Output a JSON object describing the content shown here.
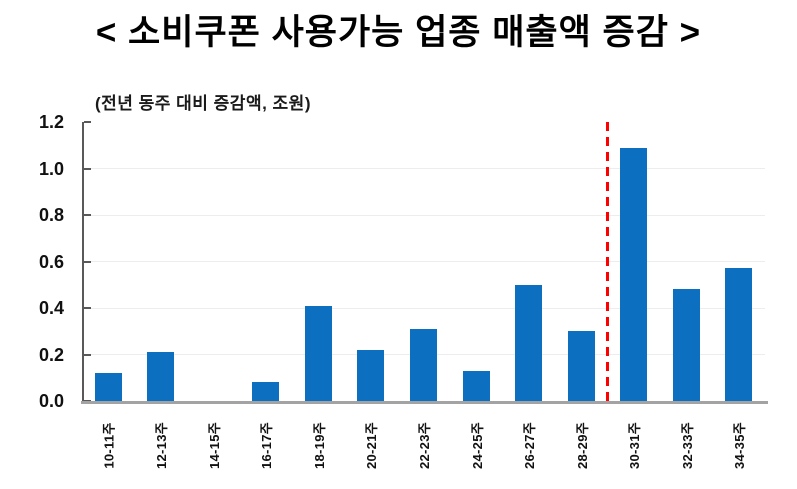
{
  "chart_data": {
    "type": "bar",
    "title": "< 소비쿠폰 사용가능 업종 매출액 증감 >",
    "subtitle": "(전년 동주 대비 증감액, 조원)",
    "categories": [
      "10-11주",
      "12-13주",
      "14-15주",
      "16-17주",
      "18-19주",
      "20-21주",
      "22-23주",
      "24-25주",
      "26-27주",
      "28-29주",
      "30-31주",
      "32-33주",
      "34-35주"
    ],
    "values": [
      0.12,
      0.21,
      0,
      0.08,
      0.41,
      0.22,
      0.31,
      0.13,
      0.5,
      0.3,
      1.09,
      0.48,
      0.57
    ],
    "xlabel": "",
    "ylabel": "",
    "ylim": [
      0,
      1.2
    ],
    "ytick_labels": [
      "0.0",
      "0.2",
      "0.4",
      "0.6",
      "0.8",
      "1.0",
      "1.2"
    ],
    "grid": true,
    "legend_position": "none",
    "x_labels_rotation": "vertical",
    "divider_line": {
      "style": "dashed",
      "color": "#ff0000",
      "orientation": "vertical",
      "position": "between 28-29주 and 30-31주",
      "before_category_index": 10
    },
    "colors": {
      "bar": "#0d6fc0",
      "y_axis": "#595959",
      "x_axis": "#a3a3a3",
      "gridline": "#ededed",
      "text": "#000000"
    }
  }
}
